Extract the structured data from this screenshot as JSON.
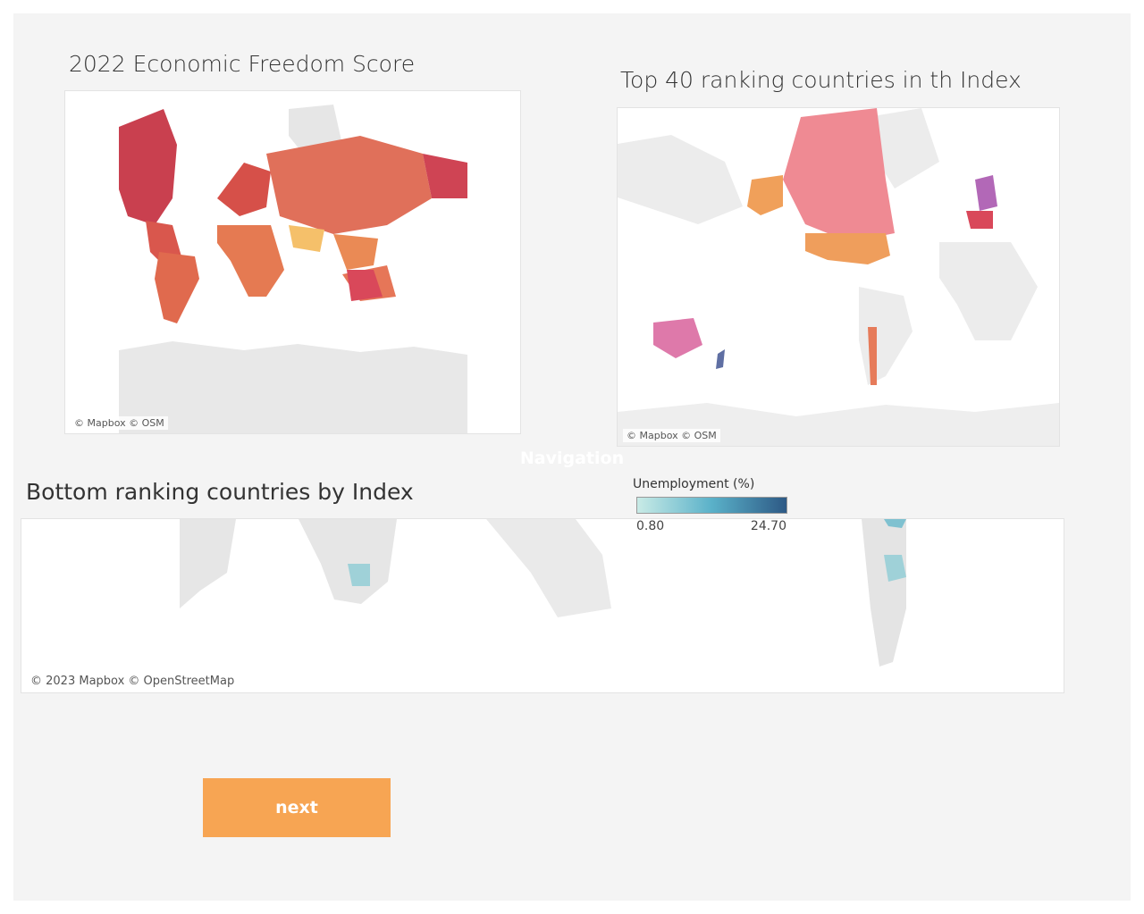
{
  "dashboard": {
    "freedom_map": {
      "title": "2022 Economic Freedom Score",
      "attribution": "© Mapbox © OSM"
    },
    "top_map": {
      "title": "Top 40 ranking countries in th Index",
      "attribution": "© Mapbox © OSM"
    },
    "navigation": "Navigation",
    "bottom_map": {
      "title": "Bottom ranking countries by Index",
      "attribution": "© 2023 Mapbox © OpenStreetMap"
    },
    "legend": {
      "title": "Unemployment (%)",
      "min_label": "0.80",
      "max_label": "24.70"
    },
    "button": "next"
  }
}
